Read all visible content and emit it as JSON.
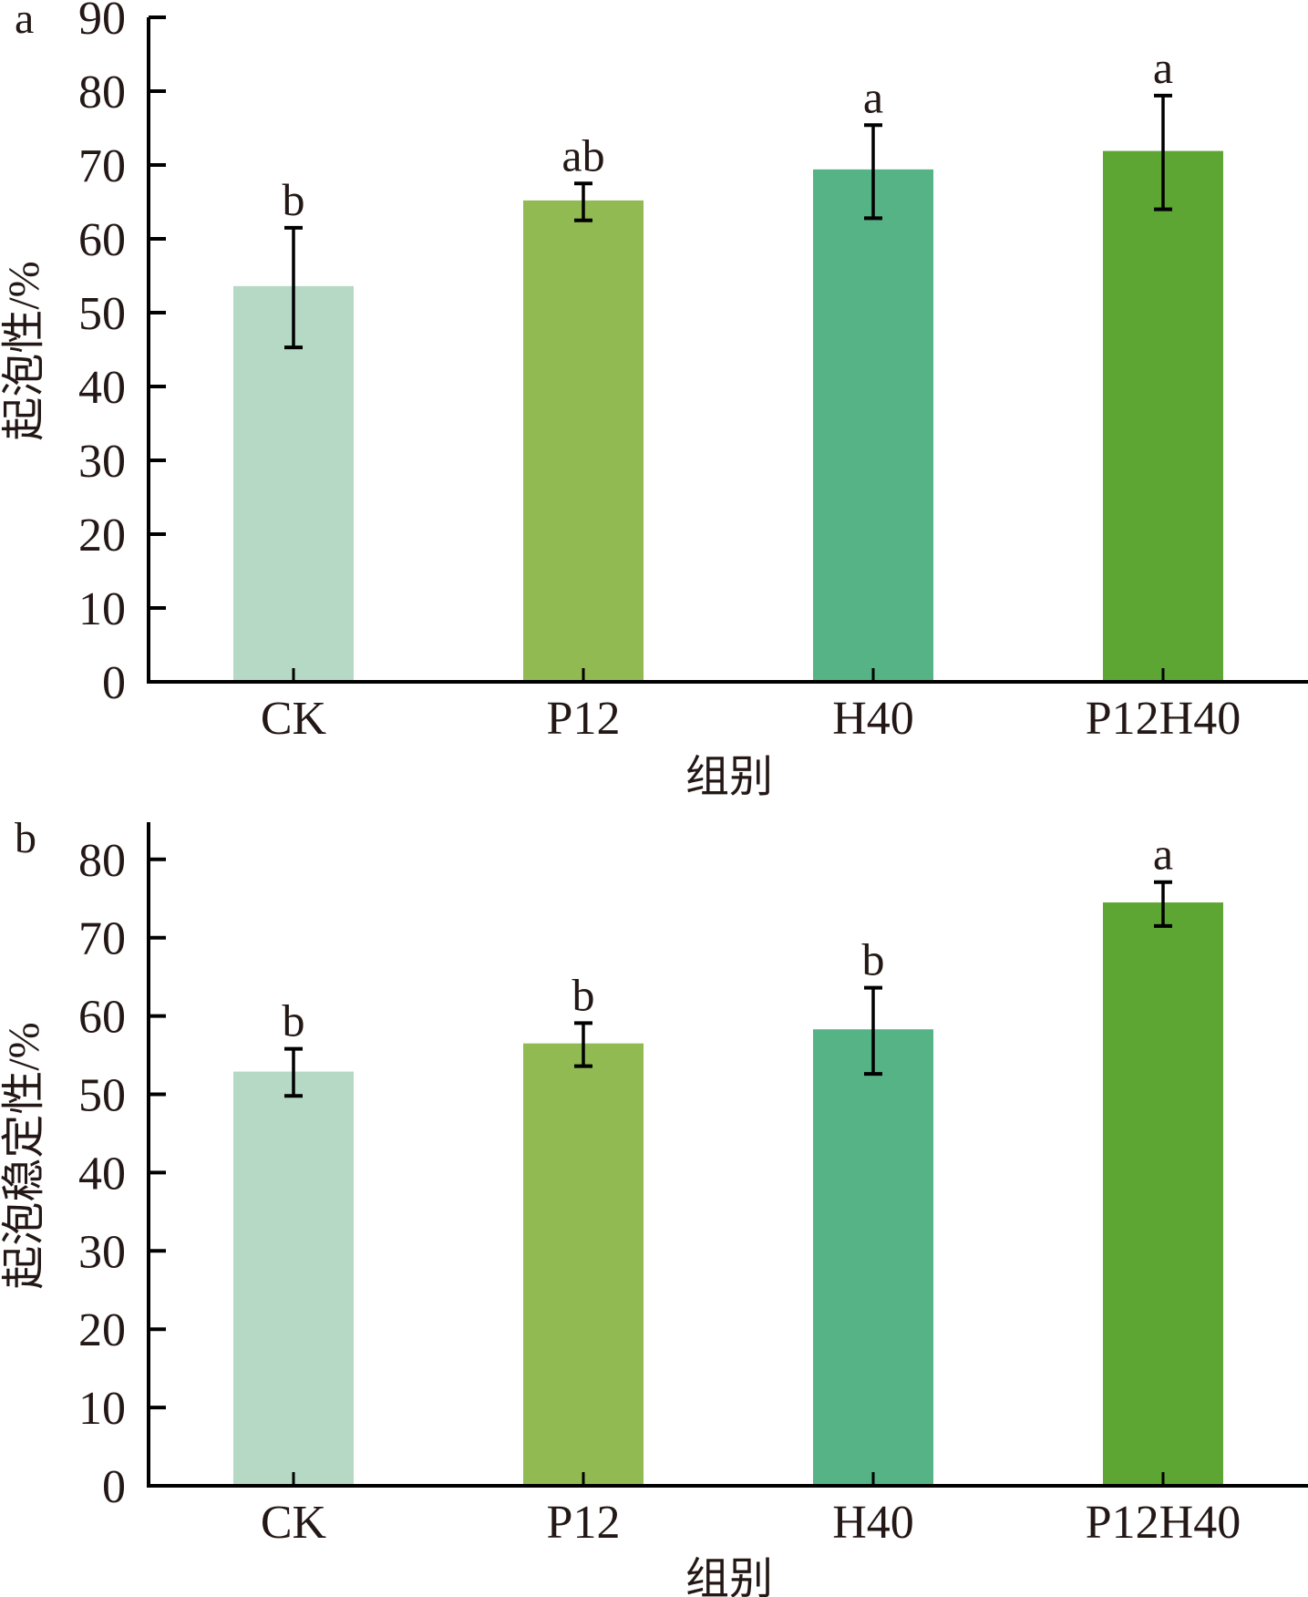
{
  "chart_data": [
    {
      "type": "bar",
      "panel": "a",
      "categories": [
        "CK",
        "P12",
        "H40",
        "P12H40"
      ],
      "values": [
        53.6,
        65.2,
        69.4,
        71.9
      ],
      "error_upper": [
        61.5,
        67.5,
        75.4,
        79.4
      ],
      "error_lower": [
        45.3,
        62.5,
        62.8,
        64.0
      ],
      "significance": [
        "b",
        "ab",
        "a",
        "a"
      ],
      "colors": [
        "#b5d9c5",
        "#92ba52",
        "#56b386",
        "#5ea634"
      ],
      "xlabel": "组别",
      "ylabel": "起泡性/%",
      "ylim": [
        0,
        90
      ],
      "yticks": [
        "0",
        "10",
        "20",
        "30",
        "40",
        "50",
        "60",
        "70",
        "80",
        "90"
      ],
      "grid": false
    },
    {
      "type": "bar",
      "panel": "b",
      "categories": [
        "CK",
        "P12",
        "H40",
        "P12H40"
      ],
      "values": [
        52.9,
        56.5,
        58.3,
        74.5
      ],
      "error_upper": [
        55.8,
        59.1,
        63.6,
        77.1
      ],
      "error_lower": [
        49.8,
        53.6,
        52.6,
        71.5
      ],
      "significance": [
        "b",
        "b",
        "b",
        "a"
      ],
      "colors": [
        "#b5d9c5",
        "#92ba52",
        "#56b386",
        "#5ea634"
      ],
      "xlabel": "组别",
      "ylabel": "起泡稳定性/%",
      "ylim": [
        0,
        85
      ],
      "yticks": [
        "0",
        "10",
        "20",
        "30",
        "40",
        "50",
        "60",
        "70",
        "80"
      ],
      "grid": false
    }
  ]
}
